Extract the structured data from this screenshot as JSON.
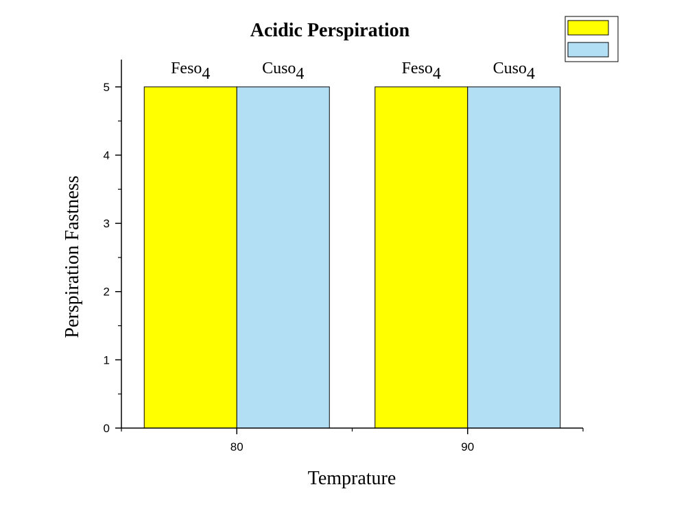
{
  "chart_data": {
    "type": "bar",
    "title": "Acidic Perspiration",
    "xlabel": "Temprature",
    "ylabel": "Perspiration Fastness",
    "categories": [
      "80",
      "90"
    ],
    "series": [
      {
        "name": "Feso",
        "subscript": "4",
        "color": "#ffff00",
        "values": [
          5,
          5
        ]
      },
      {
        "name": "Cuso",
        "subscript": "4",
        "color": "#b3dff5",
        "values": [
          5,
          5
        ]
      }
    ],
    "ylim": [
      0,
      5.4
    ],
    "yticks": [
      "0",
      "1",
      "2",
      "3",
      "4",
      "5"
    ],
    "grid": false,
    "legend": "top-right"
  }
}
